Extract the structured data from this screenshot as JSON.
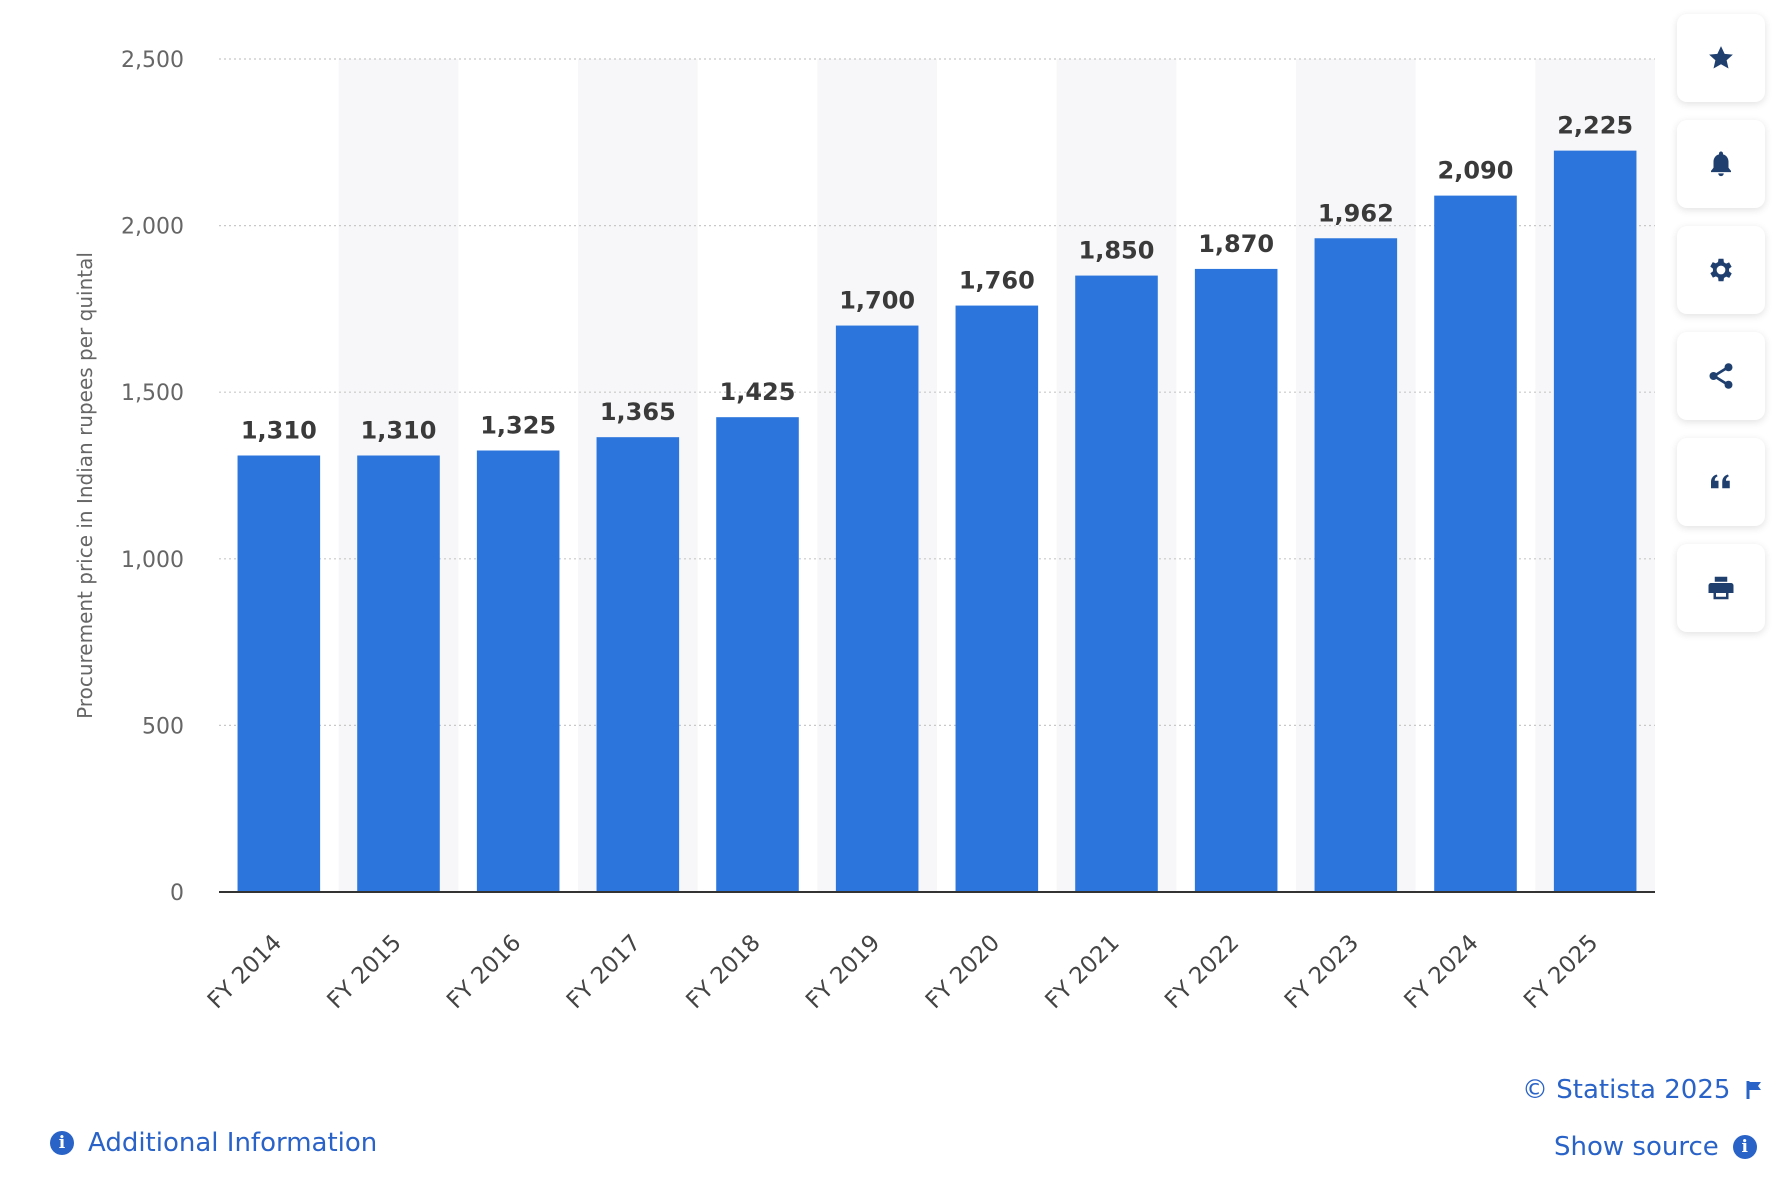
{
  "chart_data": {
    "type": "bar",
    "categories": [
      "FY 2014",
      "FY 2015",
      "FY 2016",
      "FY 2017",
      "FY 2018",
      "FY 2019",
      "FY 2020",
      "FY 2021",
      "FY 2022",
      "FY 2023",
      "FY 2024",
      "FY 2025"
    ],
    "values": [
      1310,
      1310,
      1325,
      1365,
      1425,
      1700,
      1760,
      1850,
      1870,
      1962,
      2090,
      2225
    ],
    "value_labels": [
      "1,310",
      "1,310",
      "1,325",
      "1,365",
      "1,425",
      "1,700",
      "1,760",
      "1,850",
      "1,870",
      "1,962",
      "2,090",
      "2,225"
    ],
    "ylabel": "Procurement price in Indian rupees per quintal",
    "xlabel": "",
    "ylim": [
      0,
      2500
    ],
    "yticks": [
      0,
      500,
      1000,
      1500,
      2000,
      2500
    ],
    "ytick_labels": [
      "0",
      "500",
      "1,000",
      "1,500",
      "2,000",
      "2,500"
    ],
    "grid": true,
    "bar_color": "#2b75dc",
    "alt_band_color": "#f7f7f9"
  },
  "sidebar": {
    "buttons": [
      {
        "icon": "star-icon",
        "name": "favorite-button"
      },
      {
        "icon": "bell-icon",
        "name": "notification-button"
      },
      {
        "icon": "gear-icon",
        "name": "settings-button"
      },
      {
        "icon": "share-icon",
        "name": "share-button"
      },
      {
        "icon": "quote-icon",
        "name": "cite-button"
      },
      {
        "icon": "print-icon",
        "name": "print-button"
      }
    ]
  },
  "footer": {
    "copyright": "© Statista 2025",
    "show_source": "Show source",
    "additional_info": "Additional Information",
    "link_color": "#2a63c8"
  }
}
